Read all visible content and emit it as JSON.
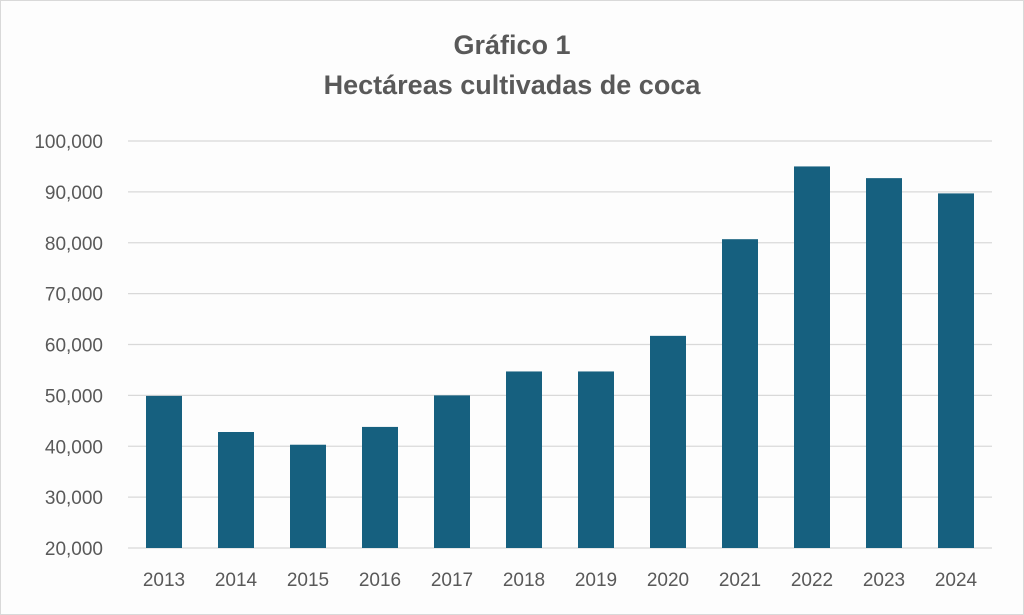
{
  "chart_data": {
    "type": "bar",
    "title": "Gráfico 1",
    "subtitle": "Hectáreas cultivadas de coca",
    "xlabel": "",
    "ylabel": "",
    "categories": [
      "2013",
      "2014",
      "2015",
      "2016",
      "2017",
      "2018",
      "2019",
      "2020",
      "2021",
      "2022",
      "2023",
      "2024"
    ],
    "values": [
      49900,
      42800,
      40300,
      43800,
      50000,
      54700,
      54700,
      61700,
      80700,
      95000,
      92700,
      89700
    ],
    "ylim": [
      20000,
      100000
    ],
    "yticks": [
      20000,
      30000,
      40000,
      50000,
      60000,
      70000,
      80000,
      90000,
      100000
    ],
    "ytick_labels": [
      "20,000",
      "30,000",
      "40,000",
      "50,000",
      "60,000",
      "70,000",
      "80,000",
      "90,000",
      "100,000"
    ],
    "grid": true,
    "legend": "none",
    "bar_color": "#16607f",
    "grid_color": "#d9d9d9"
  }
}
